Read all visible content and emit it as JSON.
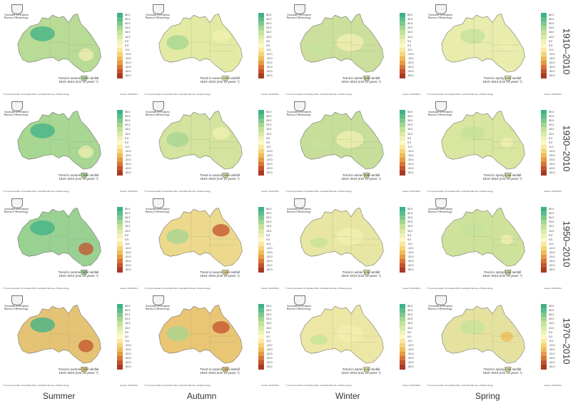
{
  "header": {
    "government": "Australian Government",
    "bureau": "Bureau of Meteorology"
  },
  "legend": {
    "labels": [
      "50.0",
      "40.0",
      "30.0",
      "20.0",
      "15.0",
      "10.0",
      "5.0",
      "0.0",
      "-5.0",
      "-10.0",
      "-15.0",
      "-20.0",
      "-30.0",
      "-40.0",
      "-50.0"
    ],
    "colors": [
      "#3fb287",
      "#5dbe8c",
      "#7fc98f",
      "#a3d690",
      "#c4e29a",
      "#dbeaa6",
      "#eef2b8",
      "#fff7c4",
      "#fae8a0",
      "#f5d37a",
      "#efbb58",
      "#e59b43",
      "#d77437",
      "#c4522c",
      "#a83a25"
    ]
  },
  "footer": {
    "copyright": "© Commonwealth of Australia 2011, Australian Bureau of Meteorology",
    "issued": "Issued: 11/02/2011"
  },
  "periods": [
    "1910–2010",
    "1930–2010",
    "1950–2010",
    "1970–2010"
  ],
  "seasons": [
    {
      "name": "Summer",
      "caption": "Trend in summer total rainfall",
      "caption2": "1910–2010 (mm 10 years⁻¹)"
    },
    {
      "name": "Autumn",
      "caption": "Trend in Autumn total rainfall",
      "caption2": "1910–2010 (mm 10 years⁻¹)"
    },
    {
      "name": "Winter",
      "caption": "Trend in winter total rainfall",
      "caption2": "1910–2010 (mm 10 years⁻¹)"
    },
    {
      "name": "Spring",
      "caption": "Trend in spring total rainfall",
      "caption2": "1910–2010 (mm 10 years⁻¹)"
    }
  ],
  "palette": {
    "strong_wet": "#3fb287",
    "wet": "#a3d690",
    "mild_wet": "#c4e29a",
    "neutral": "#f3f0b0",
    "dry": "#efbb58",
    "strong_dry": "#c4522c"
  },
  "map_fill": [
    [
      "#b8db96",
      "#e3eaa4",
      "#ccdf9c",
      "#e8ecac"
    ],
    [
      "#a8d693",
      "#d4e39e",
      "#c6de9a",
      "#d8e6a0"
    ],
    [
      "#99d192",
      "#ecd98c",
      "#e7e6a3",
      "#cfe29c"
    ],
    [
      "#e4c474",
      "#e9c674",
      "#ece7a4",
      "#e5e2a0"
    ]
  ]
}
